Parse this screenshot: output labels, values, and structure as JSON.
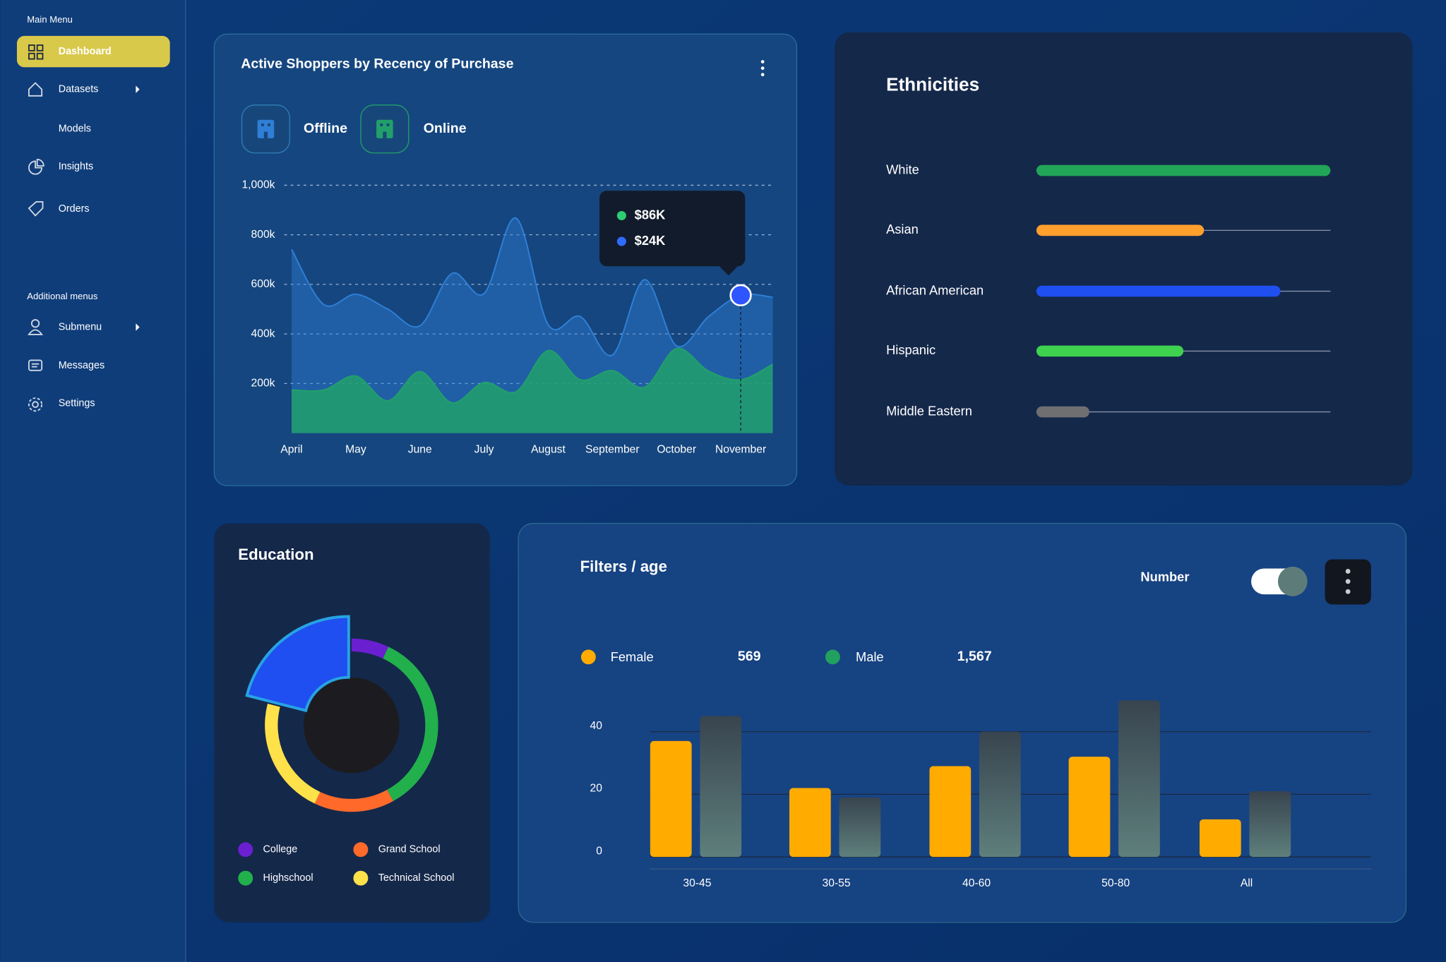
{
  "sidebar": {
    "main_menu": "Main Menu",
    "items": [
      "Dashboard",
      "Datasets",
      "Models",
      "Insights",
      "Orders"
    ],
    "additional_menus": "Additional menus",
    "additional_items": [
      "Submenu",
      "Messages",
      "Settings"
    ]
  },
  "chart_data": [
    {
      "type": "area",
      "title": "Active Shoppers by Recency of Purchase",
      "categories": [
        "April",
        null,
        "May",
        null,
        "June",
        null,
        "July",
        null,
        "August",
        null,
        "September",
        null,
        "October",
        null,
        "November",
        null
      ],
      "series": [
        {
          "name": "Offline",
          "color": "#2f7fd6",
          "values": [
            741000,
            519000,
            560000,
            500000,
            433000,
            644000,
            563000,
            867000,
            437000,
            470000,
            315000,
            619000,
            352000,
            470000,
            556000,
            548000
          ]
        },
        {
          "name": "Online",
          "color": "#22a06b",
          "values": [
            174000,
            174000,
            230000,
            130000,
            248000,
            122000,
            204000,
            167000,
            333000,
            215000,
            252000,
            185000,
            341000,
            250000,
            215000,
            278000
          ]
        }
      ],
      "ylim": [
        0,
        1000000
      ],
      "yticks": [
        {
          "value": 200000,
          "label": "200k"
        },
        {
          "value": 400000,
          "label": "400k"
        },
        {
          "value": 600000,
          "label": "600k"
        },
        {
          "value": 800000,
          "label": "800k"
        },
        {
          "value": 1000000,
          "label": "1,000k"
        }
      ],
      "grid": true,
      "tooltip": [
        {
          "label": "$86K",
          "color": "#2ecc71"
        },
        {
          "label": "$24K",
          "color": "#2f6bff"
        }
      ]
    },
    {
      "type": "hbar",
      "title": "Ethnicities",
      "categories": [
        "White",
        "Asian",
        "African American",
        "Hispanic",
        "Middle Eastern"
      ],
      "values": [
        100,
        57,
        83,
        50,
        18
      ],
      "colors": [
        "#22a559",
        "#ff9f2e",
        "#1f4ff0",
        "#3ed24f",
        "#6f6f72"
      ],
      "xlim": [
        0,
        100
      ]
    },
    {
      "type": "pie",
      "title": "Education",
      "categories": [
        "College",
        "Highschool",
        "Grand School",
        "Technical School",
        null
      ],
      "values": [
        7,
        35,
        15,
        22,
        21
      ],
      "colors": [
        "#6a1fd0",
        "#22b04c",
        "#ff6a2a",
        "#ffe14a",
        "#1f4ff0"
      ]
    },
    {
      "type": "bar",
      "title": "Filters / age",
      "toggle_label": "Number",
      "categories": [
        "30-45",
        "30-55",
        "40-60",
        "50-80",
        "All"
      ],
      "series": [
        {
          "name": "Female",
          "color": "#ffab00",
          "values": [
            37,
            22,
            29,
            32,
            12
          ],
          "total": 569
        },
        {
          "name": "Male",
          "color": "#22a060",
          "values": [
            45,
            19,
            40,
            50,
            21
          ],
          "total": 1567,
          "total_label": "1,567"
        }
      ],
      "ylim": [
        0,
        50
      ],
      "yticks": [
        0,
        20,
        40
      ],
      "grid": true
    }
  ]
}
